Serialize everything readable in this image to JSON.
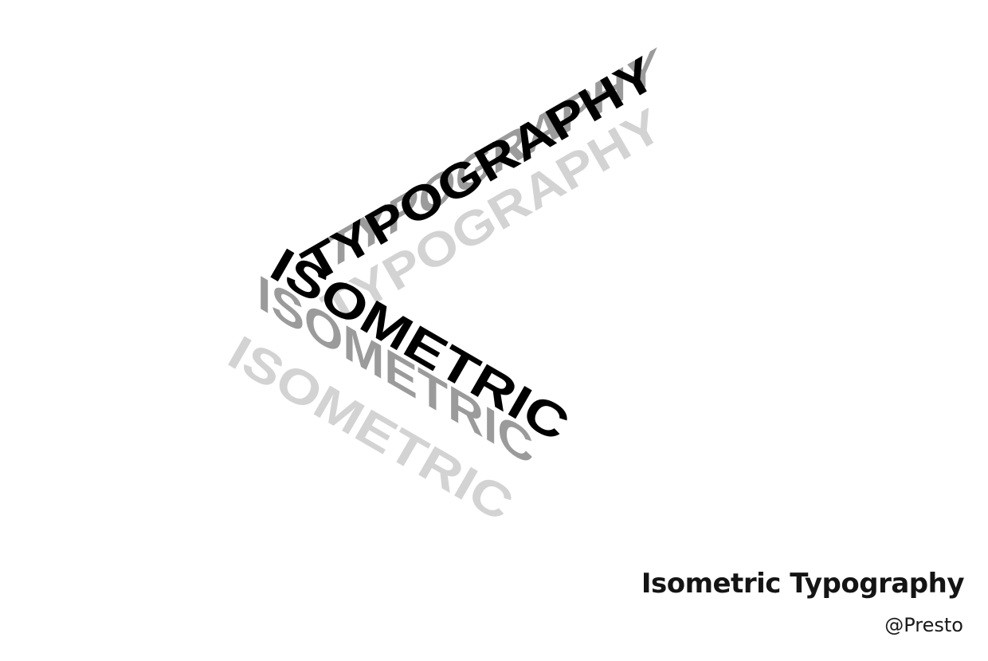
{
  "artwork": {
    "word_top": "TYPOGRAPHY",
    "word_bottom": "ISOMETRIC",
    "layers": [
      {
        "shade": "light",
        "color": "#d3d3d3"
      },
      {
        "shade": "mid",
        "color": "#9b9b9b"
      },
      {
        "shade": "dark",
        "color": "#000000"
      }
    ]
  },
  "caption": {
    "title": "Isometric Typography",
    "author": "@Presto"
  }
}
